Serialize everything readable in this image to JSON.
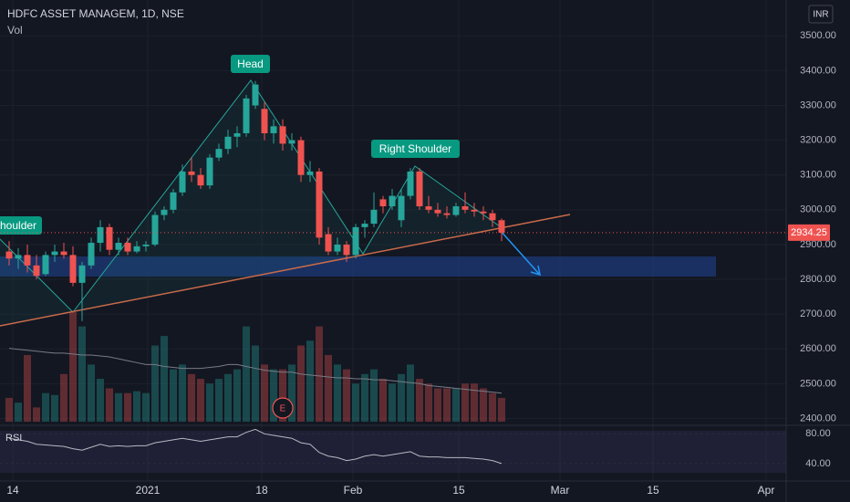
{
  "header": {
    "symbol": "HDFC ASSET MANAGEM, 1D, NSE",
    "volume_label": "Vol",
    "currency": "INR"
  },
  "chart_data": {
    "type": "candlestick",
    "up_color": "#26a69a",
    "down_color": "#ef5350",
    "open": [
      2880,
      2860,
      2870,
      2840,
      2815,
      2870,
      2880,
      2870,
      2790,
      2840,
      2905,
      2950,
      2885,
      2905,
      2880,
      2895,
      2900,
      2985,
      3000,
      3050,
      3110,
      3100,
      3070,
      3150,
      3175,
      3210,
      3220,
      3300,
      3290,
      3220,
      3240,
      3190,
      3200,
      3100,
      3110,
      2930,
      2880,
      2900,
      2870,
      2950,
      2960,
      3030,
      3010,
      2970,
      3040,
      3110,
      3010,
      3000,
      2990,
      2985,
      3010,
      3000,
      2995,
      2990,
      2970
    ],
    "high": [
      2910,
      2890,
      2900,
      2870,
      2880,
      2900,
      2905,
      2895,
      2850,
      2920,
      2970,
      2960,
      2920,
      2920,
      2910,
      2910,
      2995,
      3010,
      3060,
      3130,
      3150,
      3120,
      3160,
      3190,
      3230,
      3240,
      3330,
      3370,
      3310,
      3260,
      3260,
      3220,
      3210,
      3140,
      3120,
      2950,
      2920,
      2910,
      2960,
      2970,
      3050,
      3040,
      3060,
      3060,
      3120,
      3120,
      3040,
      3020,
      3010,
      3020,
      3050,
      3020,
      3010,
      3000,
      2975
    ],
    "low": [
      2840,
      2830,
      2820,
      2800,
      2810,
      2850,
      2860,
      2780,
      2680,
      2830,
      2880,
      2870,
      2870,
      2870,
      2875,
      2880,
      2895,
      2970,
      2990,
      3040,
      3080,
      3060,
      3060,
      3140,
      3160,
      3180,
      3210,
      3290,
      3200,
      3190,
      3170,
      3170,
      3080,
      3080,
      2900,
      2870,
      2870,
      2850,
      2860,
      2920,
      2950,
      2990,
      3000,
      2950,
      3030,
      3000,
      2990,
      2980,
      2975,
      2980,
      2990,
      2980,
      2970,
      2950,
      2910
    ],
    "close": [
      2860,
      2870,
      2840,
      2810,
      2870,
      2880,
      2870,
      2790,
      2840,
      2905,
      2950,
      2885,
      2905,
      2880,
      2895,
      2900,
      2985,
      3000,
      3050,
      3110,
      3100,
      3070,
      3150,
      3175,
      3210,
      3220,
      3320,
      3360,
      3220,
      3240,
      3190,
      3200,
      3100,
      3110,
      2920,
      2880,
      2900,
      2870,
      2950,
      2960,
      3000,
      3010,
      3040,
      3040,
      3110,
      3010,
      3000,
      2990,
      2985,
      3010,
      3000,
      2995,
      2990,
      2970,
      2934.25
    ],
    "volume": [
      25,
      20,
      70,
      15,
      30,
      28,
      50,
      115,
      100,
      60,
      45,
      35,
      30,
      30,
      32,
      30,
      80,
      90,
      55,
      60,
      50,
      45,
      40,
      45,
      50,
      55,
      100,
      80,
      60,
      55,
      55,
      60,
      80,
      85,
      100,
      70,
      60,
      55,
      40,
      50,
      55,
      45,
      40,
      50,
      60,
      45,
      40,
      35,
      35,
      35,
      40,
      40,
      35,
      30,
      25
    ],
    "volume_ma": [
      77,
      76,
      75,
      74,
      73,
      72,
      72,
      71,
      70,
      70,
      69,
      68,
      66,
      64,
      62,
      60,
      60,
      58,
      57,
      56,
      56,
      56,
      57,
      58,
      60,
      60,
      58,
      56,
      54,
      53,
      52,
      52,
      50,
      49,
      48,
      47,
      46,
      46,
      45,
      45,
      44,
      44,
      43,
      42,
      41,
      40,
      38,
      37,
      36,
      35,
      34,
      33,
      32,
      31,
      30
    ],
    "last_price": 2934.25,
    "xlim": [
      -1,
      85.2
    ],
    "xticks": [
      {
        "value": 0.4,
        "label": "14"
      },
      {
        "value": 15.2,
        "label": "2021"
      },
      {
        "value": 27.7,
        "label": "18"
      },
      {
        "value": 37.7,
        "label": "Feb"
      },
      {
        "value": 49.3,
        "label": "15"
      },
      {
        "value": 60.4,
        "label": "Mar"
      },
      {
        "value": 70.6,
        "label": "15"
      },
      {
        "value": 83,
        "label": "Apr"
      }
    ],
    "ylim": [
      2383,
      3603
    ],
    "yticks": [
      {
        "value": 3500,
        "label": "3500.00"
      },
      {
        "value": 3400,
        "label": "3400.00"
      },
      {
        "value": 3300,
        "label": "3300.00"
      },
      {
        "value": 3200,
        "label": "3200.00"
      },
      {
        "value": 3100,
        "label": "3100.00"
      },
      {
        "value": 3000,
        "label": "3000.00"
      },
      {
        "value": 2900,
        "label": "2900.00"
      },
      {
        "value": 2800,
        "label": "2800.00"
      },
      {
        "value": 2700,
        "label": "2700.00"
      },
      {
        "value": 2600,
        "label": "2600.00"
      },
      {
        "value": 2500,
        "label": "2500.00"
      },
      {
        "value": 2400,
        "label": "2400.00"
      }
    ],
    "annotations": {
      "head": "Head",
      "right_shoulder": "Right Shoulder",
      "left_shoulder": "houlder",
      "earnings": "E"
    },
    "rsi": {
      "label": "RSI",
      "color": "#7e57c2",
      "values": [
        74,
        72,
        70,
        66,
        65,
        64,
        63,
        60,
        58,
        62,
        66,
        63,
        64,
        63,
        64,
        64,
        68,
        70,
        72,
        74,
        72,
        70,
        72,
        74,
        76,
        76,
        82,
        86,
        80,
        78,
        76,
        74,
        68,
        66,
        55,
        50,
        48,
        44,
        46,
        50,
        52,
        50,
        52,
        54,
        56,
        50,
        49,
        49,
        48,
        48,
        48,
        47,
        46,
        44,
        40
      ],
      "ylim": [
        19,
        89
      ],
      "yticks": [
        {
          "value": 80,
          "label": "80.00"
        },
        {
          "value": 40,
          "label": "40.00"
        }
      ]
    }
  }
}
